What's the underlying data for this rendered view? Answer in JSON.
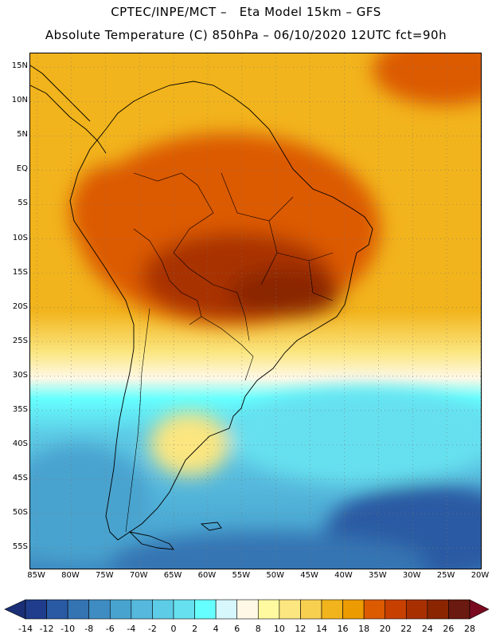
{
  "header": {
    "line1": "CPTEC/INPE/MCT –   Eta Model 15km – GFS",
    "line2": "Absolute Temperature (C) 850hPa – 06/10/2020 12UTC fct=90h"
  },
  "map": {
    "lat_labels": [
      "15N",
      "10N",
      "5N",
      "EQ",
      "5S",
      "10S",
      "15S",
      "20S",
      "25S",
      "30S",
      "35S",
      "40S",
      "45S",
      "50S",
      "55S"
    ],
    "lat_values": [
      15,
      10,
      5,
      0,
      -5,
      -10,
      -15,
      -20,
      -25,
      -30,
      -35,
      -40,
      -45,
      -50,
      -55
    ],
    "lon_labels": [
      "85W",
      "80W",
      "75W",
      "70W",
      "65W",
      "60W",
      "55W",
      "50W",
      "45W",
      "40W",
      "35W",
      "30W",
      "25W",
      "20W"
    ],
    "lon_values": [
      -85,
      -80,
      -75,
      -70,
      -65,
      -60,
      -55,
      -50,
      -45,
      -40,
      -35,
      -30,
      -25,
      -20
    ],
    "lat_range": [
      -58,
      17
    ],
    "lon_range": [
      -86,
      -20
    ],
    "grid": "dotted"
  },
  "colorbar": {
    "labels": [
      "-14",
      "-12",
      "-10",
      "-8",
      "-6",
      "-4",
      "-2",
      "0",
      "2",
      "4",
      "6",
      "8",
      "10",
      "12",
      "14",
      "16",
      "18",
      "20",
      "22",
      "24",
      "26",
      "28"
    ],
    "colors": [
      "#1f3d8c",
      "#2a5aa3",
      "#3574b3",
      "#3e8cc2",
      "#48a3cf",
      "#55b8dc",
      "#5dcce6",
      "#66e0ef",
      "#66ffff",
      "#d6f7fb",
      "#fff8e6",
      "#fffaa0",
      "#fbe680",
      "#f8d050",
      "#f2b41c",
      "#ec9b00",
      "#dc5a00",
      "#c84000",
      "#a83000",
      "#8a2500",
      "#6a1a10"
    ]
  }
}
